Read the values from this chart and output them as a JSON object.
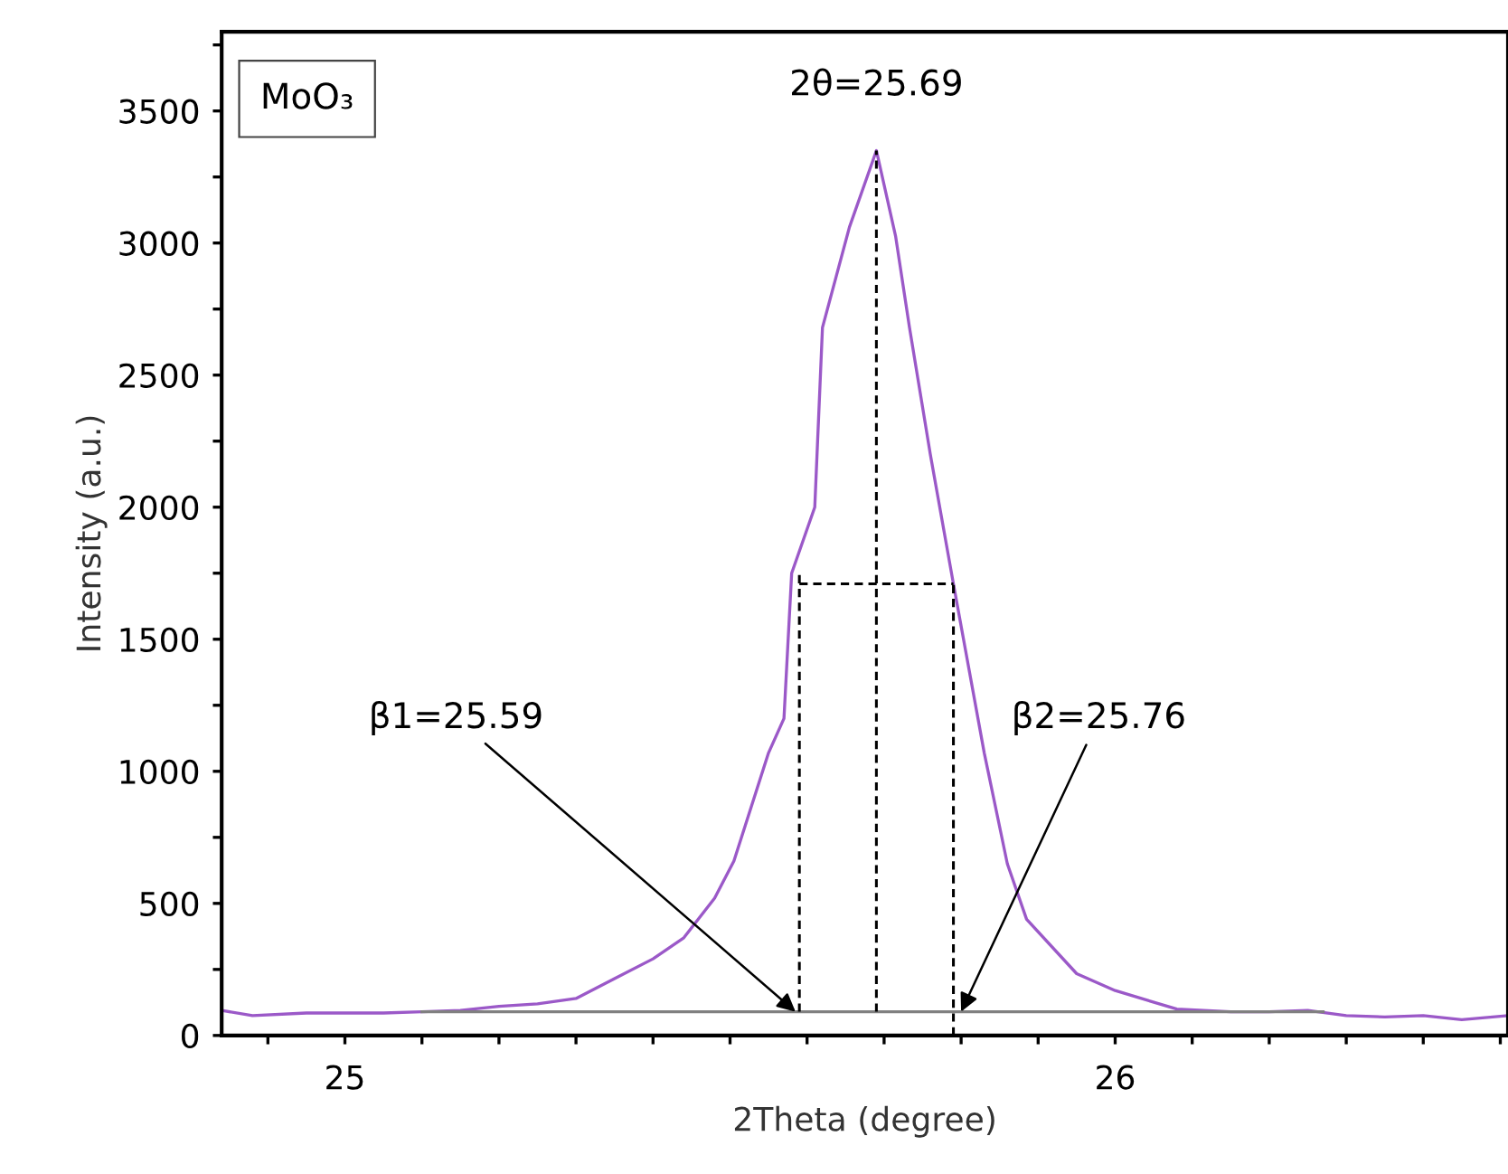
{
  "chart_data": {
    "type": "line",
    "xlabel": "2Theta (degree)",
    "ylabel": "Intensity (a.u.)",
    "xlim": [
      24.84,
      26.51
    ],
    "ylim": [
      0,
      3800
    ],
    "xticks": [
      {
        "value": 24.9,
        "label": null
      },
      25,
      {
        "value": 25.1,
        "label": null
      },
      {
        "value": 25.2,
        "label": null
      },
      {
        "value": 25.3,
        "label": null
      },
      {
        "value": 25.4,
        "label": null
      },
      {
        "value": 25.5,
        "label": null
      },
      {
        "value": 25.6,
        "label": null
      },
      {
        "value": 25.7,
        "label": null
      },
      {
        "value": 25.8,
        "label": null
      },
      {
        "value": 25.9,
        "label": null
      },
      26,
      {
        "value": 26.1,
        "label": null
      },
      {
        "value": 26.2,
        "label": null
      },
      {
        "value": 26.3,
        "label": null
      },
      {
        "value": 26.4,
        "label": null
      },
      {
        "value": 26.5,
        "label": null
      }
    ],
    "yticks": [
      0,
      {
        "value": 250,
        "label": null
      },
      500,
      {
        "value": 750,
        "label": null
      },
      1000,
      {
        "value": 1250,
        "label": null
      },
      1500,
      {
        "value": 1750,
        "label": null
      },
      2000,
      {
        "value": 2250,
        "label": null
      },
      2500,
      {
        "value": 2750,
        "label": null
      },
      3000,
      {
        "value": 3250,
        "label": null
      },
      3500,
      {
        "value": 3750,
        "label": null
      }
    ],
    "grid": false,
    "legend": false,
    "series": [
      {
        "color": "#9b59c8",
        "line_style": "solid",
        "x": [
          24.84,
          24.88,
          24.95,
          25.0,
          25.05,
          25.1,
          25.15,
          25.2,
          25.25,
          25.3,
          25.35,
          25.4,
          25.44,
          25.48,
          25.505,
          25.55,
          25.57,
          25.58,
          25.61,
          25.62,
          25.655,
          25.69,
          25.715,
          25.733,
          25.76,
          25.79,
          25.83,
          25.86,
          25.885,
          25.95,
          26.0,
          26.08,
          26.15,
          26.2,
          26.25,
          26.3,
          26.35,
          26.4,
          26.45,
          26.51
        ],
        "values": [
          95,
          75,
          85,
          85,
          85,
          90,
          95,
          110,
          120,
          140,
          215,
          290,
          370,
          520,
          660,
          1070,
          1200,
          1750,
          2000,
          2680,
          3060,
          3350,
          3025,
          2680,
          2200,
          1710,
          1070,
          650,
          440,
          234,
          170,
          100,
          90,
          90,
          95,
          75,
          70,
          75,
          60,
          75
        ]
      },
      {
        "color": "#808080",
        "line_style": "solid",
        "x": [
          25.1,
          26.27
        ],
        "values": [
          90,
          90
        ]
      },
      {
        "color": "#000000",
        "line_style": "dashed",
        "x": [
          25.59,
          25.59
        ],
        "values": [
          90,
          1750
        ]
      },
      {
        "color": "#000000",
        "line_style": "dashed",
        "x": [
          25.69,
          25.69
        ],
        "values": [
          90,
          3350
        ]
      },
      {
        "color": "#000000",
        "line_style": "dashed",
        "x": [
          25.79,
          25.79
        ],
        "values": [
          0,
          1710
        ]
      },
      {
        "color": "#000000",
        "line_style": "dashed",
        "x": [
          25.59,
          25.79
        ],
        "values": [
          1710,
          1710
        ]
      }
    ],
    "annotations": [
      "MoO₃",
      {
        "text": "2θ=25.69",
        "x": 25.69,
        "y": 3350
      },
      {
        "text": "β1=25.59",
        "x": 25.585,
        "y": 90
      },
      {
        "text": "β2=25.76",
        "x": 25.8,
        "y": 90
      }
    ]
  }
}
